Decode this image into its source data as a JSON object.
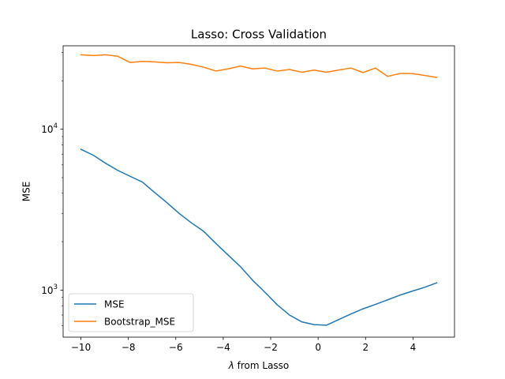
{
  "chart_data": {
    "type": "line",
    "title": "Lasso: Cross Validation",
    "xlabel": "λ from Lasso",
    "ylabel": "MSE",
    "xlim": [
      -10.75,
      5.75
    ],
    "ylim": [
      510,
      33000
    ],
    "yscale": "log",
    "grid": false,
    "legend_position": "lower-left",
    "x_ticks": [
      {
        "value": -10,
        "label": "−10"
      },
      {
        "value": -8,
        "label": "−8"
      },
      {
        "value": -6,
        "label": "−6"
      },
      {
        "value": -4,
        "label": "−4"
      },
      {
        "value": -2,
        "label": "−2"
      },
      {
        "value": 0,
        "label": "0"
      },
      {
        "value": 2,
        "label": "2"
      },
      {
        "value": 4,
        "label": "4"
      }
    ],
    "y_ticks": [
      {
        "value": 1000,
        "label_base": "10",
        "label_exp": "3"
      },
      {
        "value": 10000,
        "label_base": "10",
        "label_exp": "4"
      }
    ],
    "x": [
      -10.0,
      -9.483,
      -8.966,
      -8.448,
      -7.931,
      -7.414,
      -6.897,
      -6.379,
      -5.862,
      -5.345,
      -4.828,
      -4.31,
      -3.793,
      -3.276,
      -2.759,
      -2.241,
      -1.724,
      -1.207,
      -0.69,
      -0.172,
      0.345,
      0.862,
      1.379,
      1.897,
      2.414,
      2.931,
      3.448,
      3.966,
      4.483,
      5.0
    ],
    "series": [
      {
        "name": "MSE",
        "color": "#1f77b4",
        "values": [
          7500,
          6900,
          6150,
          5550,
          5100,
          4700,
          4050,
          3500,
          3000,
          2620,
          2320,
          1950,
          1650,
          1400,
          1150,
          970,
          810,
          700,
          635,
          610,
          605,
          655,
          710,
          765,
          815,
          870,
          930,
          985,
          1040,
          1110
        ]
      },
      {
        "name": "Bootstrap_MSE",
        "color": "#ff7f0e",
        "values": [
          29000,
          28700,
          29000,
          28400,
          26000,
          26400,
          26200,
          25900,
          26000,
          25300,
          24300,
          23000,
          23700,
          24700,
          23700,
          24000,
          23000,
          23500,
          22600,
          23300,
          22600,
          23300,
          24000,
          22500,
          24000,
          21300,
          22200,
          22200,
          21600,
          21000
        ]
      }
    ]
  }
}
